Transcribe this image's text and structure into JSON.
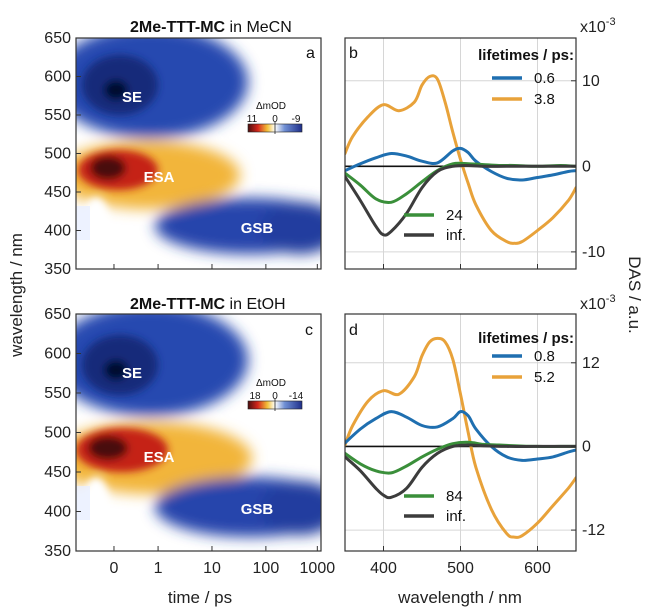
{
  "figure": {
    "ylabel_left": "wavelength / nm",
    "ylabel_right": "DAS / a.u.",
    "xlabel_left": "time / ps",
    "xlabel_right": "wavelength / nm"
  },
  "colors": {
    "blue": "#1f6fb0",
    "orange": "#e8a23a",
    "green": "#3a8f3a",
    "dark": "#3c3c3c",
    "map_negative": "#1f3a9e",
    "map_positive": "#d4261c",
    "map_peak": "#4a0f0f"
  },
  "panels": {
    "a": {
      "title_bold": "2Me-TTT-MC",
      "title_rest": " in MeCN",
      "label": "a",
      "colorbar_title": "ΔmOD",
      "colorbar_max": "11",
      "colorbar_mid": "0",
      "colorbar_min": "-9",
      "region_se": "SE",
      "region_esa": "ESA",
      "region_gsb": "GSB"
    },
    "b": {
      "label": "b",
      "scale": "x10",
      "scale_exp": "-3",
      "legend_title": "lifetimes / ps:"
    },
    "c": {
      "title_bold": "2Me-TTT-MC",
      "title_rest": " in EtOH",
      "label": "c",
      "colorbar_title": "ΔmOD",
      "colorbar_max": "18",
      "colorbar_mid": "0",
      "colorbar_min": "-14",
      "region_se": "SE",
      "region_esa": "ESA",
      "region_gsb": "GSB"
    },
    "d": {
      "label": "d",
      "scale": "x10",
      "scale_exp": "-3",
      "legend_title": "lifetimes / ps:"
    }
  },
  "chart_data": [
    {
      "type": "heatmap",
      "panel": "a",
      "title": "2Me-TTT-MC in MeCN",
      "xlabel": "time / ps",
      "ylabel": "wavelength / nm",
      "x_scale": "linear-log (linear below 1 ps, log above)",
      "x_ticks": [
        "0",
        "1",
        "10",
        "100",
        "1000"
      ],
      "y_ticks": [
        "350",
        "400",
        "450",
        "500",
        "550",
        "600",
        "650"
      ],
      "ylim": [
        350,
        650
      ],
      "zlim": [
        -9,
        11
      ],
      "z_unit": "ΔmOD",
      "features": [
        {
          "label": "SE",
          "sign": "negative",
          "wavelength_nm": [
            520,
            620
          ],
          "time_ps": [
            0,
            8
          ]
        },
        {
          "label": "ESA",
          "sign": "positive",
          "wavelength_nm": [
            450,
            510
          ],
          "time_ps": [
            0,
            8
          ]
        },
        {
          "label": "GSB",
          "sign": "negative",
          "wavelength_nm": [
            380,
            440
          ],
          "time_ps": [
            1,
            1000
          ]
        }
      ]
    },
    {
      "type": "line",
      "panel": "b",
      "xlabel": "wavelength / nm",
      "ylabel": "DAS / a.u.",
      "xlim": [
        350,
        650
      ],
      "ylim": [
        -12,
        15
      ],
      "x_ticks": [
        400,
        500,
        600
      ],
      "y_ticks": [
        -10,
        0,
        10
      ],
      "y_multiplier": "x10^-3",
      "legend_title": "lifetimes / ps:",
      "series": [
        {
          "name": "0.6",
          "color": "blue",
          "x": [
            350,
            370,
            390,
            410,
            430,
            450,
            470,
            490,
            500,
            510,
            520,
            540,
            560,
            580,
            600,
            620,
            640,
            650
          ],
          "y": [
            -0.5,
            0.3,
            1.0,
            1.5,
            1.2,
            0.6,
            0.4,
            1.8,
            2.1,
            1.6,
            0.6,
            -0.6,
            -1.4,
            -1.6,
            -1.3,
            -1.0,
            -0.6,
            -0.5
          ]
        },
        {
          "name": "3.8",
          "color": "orange",
          "x": [
            350,
            360,
            380,
            400,
            420,
            440,
            450,
            460,
            470,
            480,
            490,
            500,
            510,
            520,
            540,
            560,
            570,
            580,
            600,
            620,
            640,
            650
          ],
          "y": [
            1.5,
            3.5,
            5.8,
            7.2,
            6.5,
            7.5,
            9.5,
            10.5,
            10.2,
            7.5,
            4.0,
            0.8,
            -2.0,
            -4.5,
            -7.5,
            -8.8,
            -9.0,
            -8.8,
            -7.5,
            -6.0,
            -4.0,
            -2.5
          ]
        },
        {
          "name": "24",
          "color": "green",
          "x": [
            350,
            370,
            390,
            410,
            430,
            450,
            470,
            490,
            510,
            530,
            550,
            570,
            600,
            630,
            650
          ],
          "y": [
            -0.8,
            -2.2,
            -3.8,
            -4.2,
            -3.2,
            -1.8,
            -0.5,
            0.3,
            0.3,
            0.2,
            0.1,
            0.1,
            0.0,
            0.1,
            0.0
          ]
        },
        {
          "name": "inf.",
          "color": "dark",
          "x": [
            350,
            370,
            390,
            400,
            410,
            430,
            450,
            470,
            490,
            510,
            530,
            560,
            600,
            650
          ],
          "y": [
            -1.2,
            -4.0,
            -7.0,
            -8.0,
            -7.6,
            -5.5,
            -2.5,
            -0.6,
            0.0,
            0.1,
            0.0,
            0.0,
            0.0,
            0.0
          ]
        }
      ]
    },
    {
      "type": "heatmap",
      "panel": "c",
      "title": "2Me-TTT-MC in EtOH",
      "xlabel": "time / ps",
      "ylabel": "wavelength / nm",
      "x_scale": "linear-log (linear below 1 ps, log above)",
      "x_ticks": [
        "0",
        "1",
        "10",
        "100",
        "1000"
      ],
      "y_ticks": [
        "350",
        "400",
        "450",
        "500",
        "550",
        "600",
        "650"
      ],
      "ylim": [
        350,
        650
      ],
      "zlim": [
        -14,
        18
      ],
      "z_unit": "ΔmOD",
      "features": [
        {
          "label": "SE",
          "sign": "negative",
          "wavelength_nm": [
            520,
            620
          ],
          "time_ps": [
            0,
            10
          ]
        },
        {
          "label": "ESA",
          "sign": "positive",
          "wavelength_nm": [
            450,
            510
          ],
          "time_ps": [
            0,
            15
          ]
        },
        {
          "label": "GSB",
          "sign": "negative",
          "wavelength_nm": [
            380,
            440
          ],
          "time_ps": [
            1,
            1000
          ]
        }
      ]
    },
    {
      "type": "line",
      "panel": "d",
      "xlabel": "wavelength / nm",
      "ylabel": "DAS / a.u.",
      "xlim": [
        350,
        650
      ],
      "ylim": [
        -15,
        19
      ],
      "x_ticks": [
        400,
        500,
        600
      ],
      "y_ticks": [
        -12,
        0,
        12
      ],
      "y_multiplier": "x10^-3",
      "legend_title": "lifetimes / ps:",
      "series": [
        {
          "name": "0.8",
          "color": "blue",
          "x": [
            350,
            370,
            390,
            410,
            430,
            450,
            470,
            490,
            500,
            510,
            520,
            540,
            560,
            580,
            600,
            620,
            640,
            650
          ],
          "y": [
            0.5,
            2.5,
            4.0,
            5.0,
            4.2,
            3.0,
            2.8,
            4.0,
            5.0,
            4.4,
            2.5,
            0.0,
            -1.5,
            -2.0,
            -1.8,
            -1.5,
            -0.8,
            -0.5
          ]
        },
        {
          "name": "5.2",
          "color": "orange",
          "x": [
            350,
            360,
            380,
            400,
            420,
            440,
            450,
            460,
            470,
            480,
            490,
            500,
            510,
            520,
            540,
            560,
            570,
            580,
            600,
            620,
            640,
            650
          ],
          "y": [
            0.2,
            3.0,
            6.5,
            8.0,
            7.5,
            10.0,
            13.0,
            15.0,
            15.5,
            15.0,
            12.5,
            7.5,
            2.0,
            -3.0,
            -9.0,
            -12.5,
            -13.0,
            -12.8,
            -11.0,
            -8.5,
            -6.0,
            -4.5
          ]
        },
        {
          "name": "84",
          "color": "green",
          "x": [
            350,
            370,
            390,
            410,
            430,
            450,
            470,
            490,
            510,
            530,
            550,
            570,
            600,
            630,
            650
          ],
          "y": [
            -1.0,
            -2.5,
            -3.5,
            -3.8,
            -2.8,
            -1.5,
            -0.4,
            0.4,
            0.6,
            0.3,
            0.2,
            0.1,
            0.0,
            0.0,
            0.0
          ]
        },
        {
          "name": "inf.",
          "color": "dark",
          "x": [
            350,
            370,
            390,
            400,
            410,
            430,
            450,
            470,
            490,
            510,
            530,
            560,
            600,
            650
          ],
          "y": [
            -1.5,
            -3.5,
            -6.0,
            -7.0,
            -7.3,
            -6.0,
            -3.0,
            -1.0,
            0.0,
            0.2,
            0.1,
            0.0,
            0.0,
            0.0
          ]
        }
      ]
    }
  ]
}
